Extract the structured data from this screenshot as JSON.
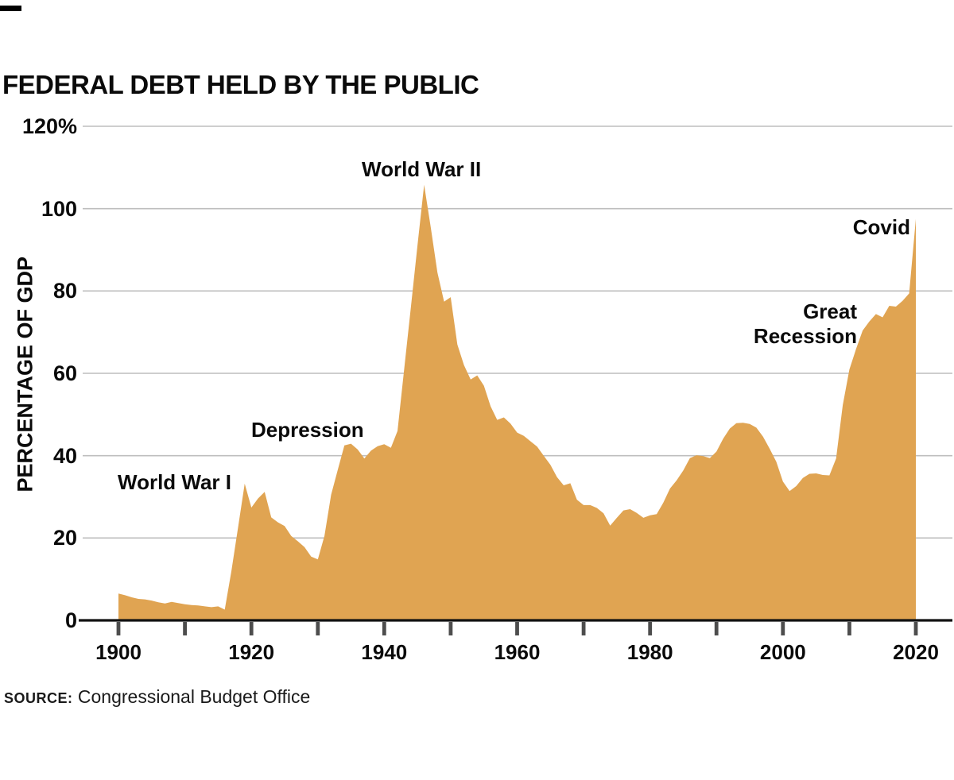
{
  "title": "FEDERAL DEBT HELD BY THE PUBLIC",
  "y_axis": {
    "label": "PERCENTAGE OF GDP",
    "ticks": [
      {
        "value": 120,
        "label": "120%"
      },
      {
        "value": 100,
        "label": "100"
      },
      {
        "value": 80,
        "label": "80"
      },
      {
        "value": 60,
        "label": "60"
      },
      {
        "value": 40,
        "label": "40"
      },
      {
        "value": 20,
        "label": "20"
      },
      {
        "value": 0,
        "label": "0"
      }
    ]
  },
  "x_axis": {
    "ticks": [
      {
        "year": 1900,
        "label": "1900"
      },
      {
        "year": 1920,
        "label": "1920"
      },
      {
        "year": 1940,
        "label": "1940"
      },
      {
        "year": 1960,
        "label": "1960"
      },
      {
        "year": 1980,
        "label": "1980"
      },
      {
        "year": 2000,
        "label": "2000"
      },
      {
        "year": 2020,
        "label": "2020"
      }
    ],
    "minor_tick_years": [
      1900,
      1910,
      1920,
      1930,
      1940,
      1950,
      1960,
      1970,
      1980,
      1990,
      2000,
      2010,
      2020
    ]
  },
  "annotations": [
    {
      "id": "world-war-1",
      "text": "World War I"
    },
    {
      "id": "depression",
      "text": "Depression"
    },
    {
      "id": "world-war-2",
      "text": "World War II"
    },
    {
      "id": "great-recession",
      "line1": "Great",
      "line2": "Recession"
    },
    {
      "id": "covid",
      "text": "Covid"
    }
  ],
  "source": {
    "prefix": "SOURCE:",
    "text": " Congressional Budget Office"
  },
  "colors": {
    "area": "#E0A452",
    "gridline": "#BEBEBE",
    "baseline": "#111111",
    "tick": "#4D4D4D",
    "text": "#0a0a0a"
  },
  "chart_data": {
    "type": "area",
    "title": "FEDERAL DEBT HELD BY THE PUBLIC",
    "xlabel": "",
    "ylabel": "PERCENTAGE OF GDP",
    "xlim": [
      1900,
      2020
    ],
    "ylim": [
      0,
      120
    ],
    "grid": "horizontal",
    "legend": "none",
    "x": [
      1900,
      1901,
      1902,
      1903,
      1904,
      1905,
      1906,
      1907,
      1908,
      1909,
      1910,
      1911,
      1912,
      1913,
      1914,
      1915,
      1916,
      1917,
      1918,
      1919,
      1920,
      1921,
      1922,
      1923,
      1924,
      1925,
      1926,
      1927,
      1928,
      1929,
      1930,
      1931,
      1932,
      1933,
      1934,
      1935,
      1936,
      1937,
      1938,
      1939,
      1940,
      1941,
      1942,
      1943,
      1944,
      1945,
      1946,
      1947,
      1948,
      1949,
      1950,
      1951,
      1952,
      1953,
      1954,
      1955,
      1956,
      1957,
      1958,
      1959,
      1960,
      1961,
      1962,
      1963,
      1964,
      1965,
      1966,
      1967,
      1968,
      1969,
      1970,
      1971,
      1972,
      1973,
      1974,
      1975,
      1976,
      1977,
      1978,
      1979,
      1980,
      1981,
      1982,
      1983,
      1984,
      1985,
      1986,
      1987,
      1988,
      1989,
      1990,
      1991,
      1992,
      1993,
      1994,
      1995,
      1996,
      1997,
      1998,
      1999,
      2000,
      2001,
      2002,
      2003,
      2004,
      2005,
      2006,
      2007,
      2008,
      2009,
      2010,
      2011,
      2012,
      2013,
      2014,
      2015,
      2016,
      2017,
      2018,
      2019,
      2020
    ],
    "values": [
      6.5,
      6.1,
      5.6,
      5.2,
      5.1,
      4.8,
      4.4,
      4.1,
      4.5,
      4.2,
      3.9,
      3.7,
      3.6,
      3.4,
      3.2,
      3.4,
      2.6,
      12.0,
      22.5,
      33.2,
      27.4,
      29.6,
      31.2,
      25.0,
      23.8,
      22.9,
      20.5,
      19.2,
      17.8,
      15.5,
      14.8,
      20.5,
      30.5,
      36.5,
      42.5,
      42.9,
      41.5,
      39.3,
      41.2,
      42.3,
      42.8,
      41.9,
      46.0,
      61.0,
      76.0,
      91.0,
      105.8,
      95.5,
      84.5,
      77.4,
      78.5,
      67.0,
      62.0,
      58.5,
      59.5,
      57.0,
      52.0,
      48.7,
      49.3,
      47.8,
      45.6,
      44.8,
      43.5,
      42.2,
      40.0,
      37.8,
      34.8,
      32.8,
      33.3,
      29.3,
      28.0,
      28.0,
      27.3,
      26.0,
      23.0,
      24.9,
      26.7,
      27.0,
      26.1,
      24.9,
      25.5,
      25.8,
      28.6,
      32.0,
      34.0,
      36.4,
      39.4,
      40.1,
      39.9,
      39.4,
      41.0,
      44.1,
      46.6,
      47.9,
      48.0,
      47.7,
      46.8,
      44.6,
      41.7,
      38.5,
      33.7,
      31.4,
      32.6,
      34.6,
      35.6,
      35.7,
      35.3,
      35.2,
      39.3,
      52.3,
      60.9,
      65.9,
      70.4,
      72.6,
      74.4,
      73.6,
      76.4,
      76.2,
      77.6,
      79.4,
      97.5
    ],
    "annotations": [
      {
        "text": "World War I",
        "year": 1919,
        "value": 33.2
      },
      {
        "text": "Depression",
        "year": 1935,
        "value": 42.9
      },
      {
        "text": "World War II",
        "year": 1946,
        "value": 105.8
      },
      {
        "text": "Great Recession",
        "year": 2009,
        "value": 52.3
      },
      {
        "text": "Covid",
        "year": 2020,
        "value": 97.5
      }
    ]
  }
}
